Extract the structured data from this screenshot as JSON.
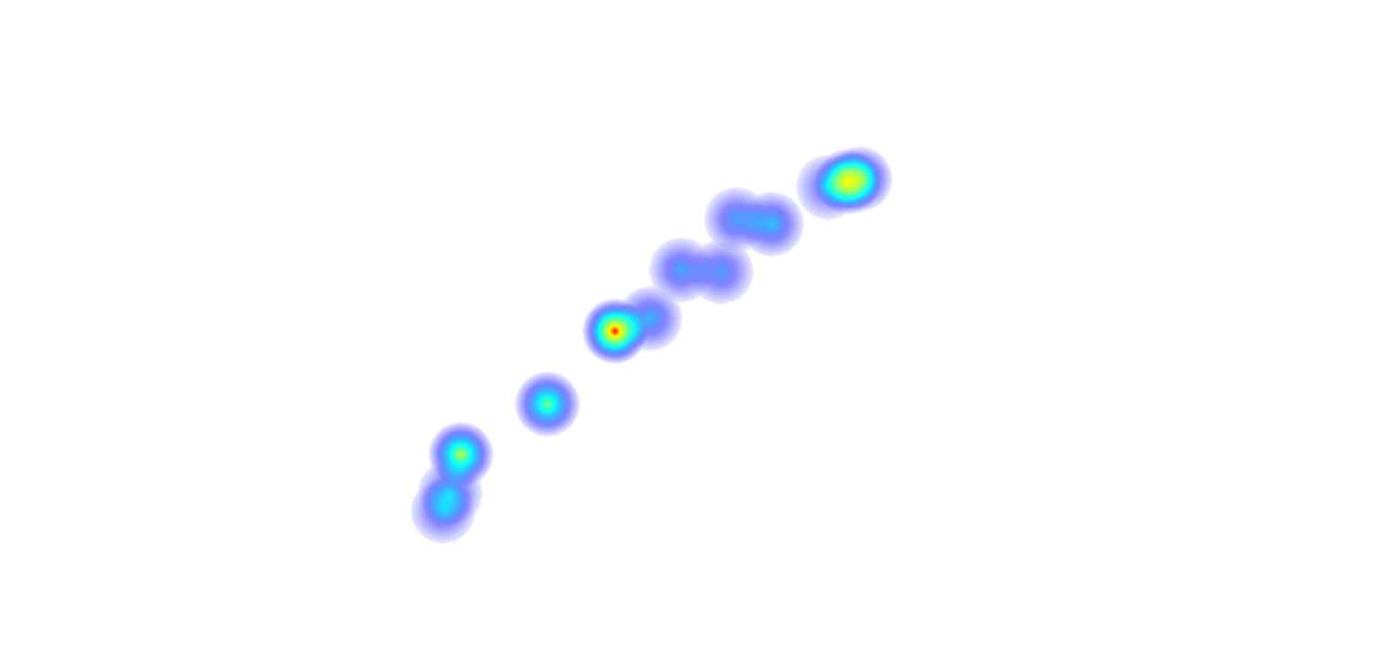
{
  "heatmap": {
    "gradient": {
      "0.25": "#0000ff",
      "0.55": "#00ffff",
      "0.85": "#ffff00",
      "1.0": "#ff0000"
    }
  }
}
